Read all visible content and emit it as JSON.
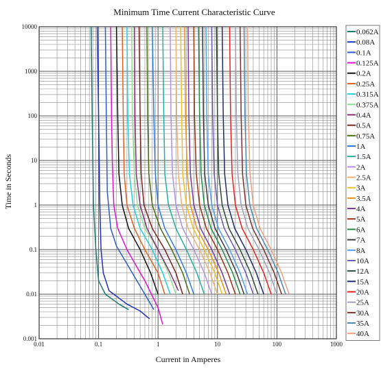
{
  "chart_data": {
    "type": "line",
    "title": "Minimum Time Current Characteristic Curve",
    "xlabel": "Current in Amperes",
    "ylabel": "Time in Seconds",
    "x_scale": "log",
    "y_scale": "log",
    "xlim": [
      0.01,
      1000
    ],
    "ylim": [
      0.001,
      10000
    ],
    "x_ticks": [
      "0.01",
      "0.1",
      "1",
      "10",
      "100",
      "1000"
    ],
    "y_ticks": [
      "0.001",
      "0.01",
      "0.1",
      "1",
      "10",
      "100",
      "1000",
      "10000"
    ],
    "grid": true,
    "legend_position": "right",
    "series": [
      {
        "name": "0.062A",
        "color": "#1a7a6e",
        "points": [
          [
            0.075,
            10000
          ],
          [
            0.078,
            100
          ],
          [
            0.082,
            1
          ],
          [
            0.09,
            0.1
          ],
          [
            0.1,
            0.02
          ],
          [
            0.13,
            0.01
          ],
          [
            0.22,
            0.006
          ],
          [
            0.32,
            0.0045
          ]
        ]
      },
      {
        "name": "0.08A",
        "color": "#1f2fbf",
        "points": [
          [
            0.095,
            10000
          ],
          [
            0.1,
            100
          ],
          [
            0.105,
            1
          ],
          [
            0.11,
            0.1
          ],
          [
            0.12,
            0.03
          ],
          [
            0.15,
            0.012
          ],
          [
            0.3,
            0.006
          ],
          [
            0.5,
            0.0042
          ],
          [
            0.72,
            0.0028
          ]
        ]
      },
      {
        "name": "0.1A",
        "color": "#2b5cc8",
        "points": [
          [
            0.13,
            10000
          ],
          [
            0.135,
            100
          ],
          [
            0.14,
            2
          ],
          [
            0.16,
            0.3
          ],
          [
            0.2,
            0.12
          ],
          [
            0.4,
            0.025
          ],
          [
            0.6,
            0.01
          ],
          [
            0.85,
            0.0045
          ]
        ]
      },
      {
        "name": "0.125A",
        "color": "#e010d0",
        "points": [
          [
            0.16,
            10000
          ],
          [
            0.165,
            100
          ],
          [
            0.17,
            10
          ],
          [
            0.18,
            1
          ],
          [
            0.21,
            0.3
          ],
          [
            0.3,
            0.1
          ],
          [
            0.6,
            0.02
          ],
          [
            1.0,
            0.005
          ],
          [
            1.2,
            0.0021
          ]
        ]
      },
      {
        "name": "0.2A",
        "color": "#111111",
        "points": [
          [
            0.2,
            10000
          ],
          [
            0.21,
            100
          ],
          [
            0.22,
            5
          ],
          [
            0.25,
            1
          ],
          [
            0.32,
            0.3
          ],
          [
            0.5,
            0.1
          ],
          [
            0.75,
            0.03
          ],
          [
            1.0,
            0.01
          ]
        ]
      },
      {
        "name": "0.25A",
        "color": "#e06020",
        "points": [
          [
            0.25,
            10000
          ],
          [
            0.26,
            100
          ],
          [
            0.27,
            5
          ],
          [
            0.3,
            1
          ],
          [
            0.4,
            0.3
          ],
          [
            0.6,
            0.1
          ],
          [
            1.0,
            0.03
          ],
          [
            1.3,
            0.01
          ]
        ]
      },
      {
        "name": "0.315A",
        "color": "#20d0d8",
        "points": [
          [
            0.3,
            10000
          ],
          [
            0.31,
            100
          ],
          [
            0.33,
            5
          ],
          [
            0.38,
            1
          ],
          [
            0.5,
            0.3
          ],
          [
            0.8,
            0.1
          ],
          [
            1.2,
            0.03
          ],
          [
            1.6,
            0.01
          ]
        ]
      },
      {
        "name": "0.375A",
        "color": "#90e090",
        "points": [
          [
            0.36,
            10000
          ],
          [
            0.37,
            100
          ],
          [
            0.4,
            5
          ],
          [
            0.45,
            1
          ],
          [
            0.6,
            0.3
          ],
          [
            1.0,
            0.1
          ],
          [
            1.5,
            0.03
          ],
          [
            2.0,
            0.01
          ]
        ]
      },
      {
        "name": "0.4A",
        "color": "#8a2a7a",
        "points": [
          [
            0.4,
            10000
          ],
          [
            0.41,
            100
          ],
          [
            0.43,
            5
          ],
          [
            0.5,
            1
          ],
          [
            0.65,
            0.3
          ],
          [
            1.0,
            0.1
          ],
          [
            1.6,
            0.03
          ],
          [
            2.2,
            0.012
          ]
        ]
      },
      {
        "name": "0.5A",
        "color": "#7a2020",
        "points": [
          [
            0.48,
            10000
          ],
          [
            0.5,
            100
          ],
          [
            0.52,
            5
          ],
          [
            0.58,
            1
          ],
          [
            0.8,
            0.3
          ],
          [
            1.3,
            0.1
          ],
          [
            2.0,
            0.03
          ],
          [
            2.6,
            0.01
          ]
        ]
      },
      {
        "name": "0.75A",
        "color": "#4a6a10",
        "points": [
          [
            0.65,
            10000
          ],
          [
            0.67,
            100
          ],
          [
            0.7,
            5
          ],
          [
            0.8,
            1
          ],
          [
            1.1,
            0.3
          ],
          [
            1.7,
            0.1
          ],
          [
            2.6,
            0.03
          ],
          [
            3.4,
            0.01
          ]
        ]
      },
      {
        "name": "1A",
        "color": "#2a7ae8",
        "points": [
          [
            0.8,
            10000
          ],
          [
            0.85,
            100
          ],
          [
            0.9,
            5
          ],
          [
            1.0,
            1
          ],
          [
            1.3,
            0.3
          ],
          [
            2.0,
            0.1
          ],
          [
            3.0,
            0.03
          ],
          [
            4.0,
            0.01
          ]
        ]
      },
      {
        "name": "1.5A",
        "color": "#20b0a0",
        "points": [
          [
            1.2,
            10000
          ],
          [
            1.25,
            100
          ],
          [
            1.3,
            5
          ],
          [
            1.5,
            1
          ],
          [
            2.0,
            0.3
          ],
          [
            3.0,
            0.1
          ],
          [
            4.5,
            0.03
          ],
          [
            6.0,
            0.01
          ]
        ]
      },
      {
        "name": "2A",
        "color": "#b090e8",
        "points": [
          [
            1.6,
            10000
          ],
          [
            1.65,
            100
          ],
          [
            1.75,
            5
          ],
          [
            2.0,
            1
          ],
          [
            2.6,
            0.3
          ],
          [
            4.0,
            0.1
          ],
          [
            6.0,
            0.03
          ],
          [
            8.0,
            0.01
          ]
        ]
      },
      {
        "name": "2.5A",
        "color": "#f0b070",
        "points": [
          [
            2.0,
            10000
          ],
          [
            2.05,
            100
          ],
          [
            2.2,
            5
          ],
          [
            2.5,
            1
          ],
          [
            3.2,
            0.3
          ],
          [
            5.0,
            0.1
          ],
          [
            7.5,
            0.03
          ],
          [
            10.0,
            0.01
          ]
        ]
      },
      {
        "name": "3A",
        "color": "#f0c020",
        "points": [
          [
            2.4,
            10000
          ],
          [
            2.5,
            100
          ],
          [
            2.6,
            5
          ],
          [
            3.0,
            1
          ],
          [
            3.9,
            0.3
          ],
          [
            6.0,
            0.1
          ],
          [
            9.0,
            0.03
          ],
          [
            12.0,
            0.01
          ]
        ]
      },
      {
        "name": "3.5A",
        "color": "#f09010",
        "points": [
          [
            2.8,
            10000
          ],
          [
            2.9,
            100
          ],
          [
            3.1,
            5
          ],
          [
            3.5,
            1
          ],
          [
            4.5,
            0.3
          ],
          [
            7.0,
            0.1
          ],
          [
            10.5,
            0.03
          ],
          [
            14.0,
            0.01
          ]
        ]
      },
      {
        "name": "4A",
        "color": "#7a3a9a",
        "points": [
          [
            3.2,
            10000
          ],
          [
            3.3,
            100
          ],
          [
            3.5,
            5
          ],
          [
            4.0,
            1
          ],
          [
            5.2,
            0.3
          ],
          [
            8.0,
            0.1
          ],
          [
            12.0,
            0.03
          ],
          [
            16.0,
            0.01
          ]
        ]
      },
      {
        "name": "5A",
        "color": "#9a3010",
        "points": [
          [
            4.0,
            10000
          ],
          [
            4.1,
            100
          ],
          [
            4.4,
            5
          ],
          [
            5.0,
            1
          ],
          [
            6.5,
            0.3
          ],
          [
            10.0,
            0.1
          ],
          [
            15.0,
            0.03
          ],
          [
            20.0,
            0.01
          ]
        ]
      },
      {
        "name": "6A",
        "color": "#208a40",
        "points": [
          [
            4.8,
            10000
          ],
          [
            5.0,
            100
          ],
          [
            5.3,
            5
          ],
          [
            6.0,
            1
          ],
          [
            7.8,
            0.3
          ],
          [
            12.0,
            0.1
          ],
          [
            18.0,
            0.03
          ],
          [
            24.0,
            0.01
          ]
        ]
      },
      {
        "name": "7A",
        "color": "#3a3a3a",
        "points": [
          [
            5.6,
            10000
          ],
          [
            5.8,
            100
          ],
          [
            6.1,
            5
          ],
          [
            7.0,
            1
          ],
          [
            9.1,
            0.3
          ],
          [
            14.0,
            0.1
          ],
          [
            21.0,
            0.03
          ],
          [
            28.0,
            0.01
          ]
        ]
      },
      {
        "name": "8A",
        "color": "#4aa0f0",
        "points": [
          [
            6.4,
            10000
          ],
          [
            6.6,
            100
          ],
          [
            7.0,
            5
          ],
          [
            8.0,
            1
          ],
          [
            10.4,
            0.3
          ],
          [
            16.0,
            0.1
          ],
          [
            24.0,
            0.03
          ],
          [
            32.0,
            0.01
          ]
        ]
      },
      {
        "name": "10A",
        "color": "#6a5ab0",
        "points": [
          [
            8.0,
            10000
          ],
          [
            8.3,
            100
          ],
          [
            8.8,
            5
          ],
          [
            10.0,
            1
          ],
          [
            13.0,
            0.3
          ],
          [
            20.0,
            0.1
          ],
          [
            30.0,
            0.03
          ],
          [
            40.0,
            0.01
          ]
        ]
      },
      {
        "name": "12A",
        "color": "#2a4a3a",
        "points": [
          [
            9.6,
            10000
          ],
          [
            10.0,
            100
          ],
          [
            10.5,
            5
          ],
          [
            12.0,
            1
          ],
          [
            15.6,
            0.3
          ],
          [
            24.0,
            0.1
          ],
          [
            36.0,
            0.03
          ],
          [
            48.0,
            0.01
          ]
        ]
      },
      {
        "name": "15A",
        "color": "#1a2a6a",
        "points": [
          [
            12.0,
            10000
          ],
          [
            12.5,
            100
          ],
          [
            13.2,
            5
          ],
          [
            15.0,
            1
          ],
          [
            19.5,
            0.3
          ],
          [
            30.0,
            0.1
          ],
          [
            45.0,
            0.03
          ],
          [
            60.0,
            0.01
          ]
        ]
      },
      {
        "name": "20A",
        "color": "#e82020",
        "points": [
          [
            16.0,
            10000
          ],
          [
            16.6,
            100
          ],
          [
            17.6,
            5
          ],
          [
            20.0,
            1
          ],
          [
            26.0,
            0.3
          ],
          [
            40.0,
            0.1
          ],
          [
            60.0,
            0.03
          ],
          [
            80.0,
            0.01
          ]
        ]
      },
      {
        "name": "25A",
        "color": "#a0a0b8",
        "points": [
          [
            20.0,
            10000
          ],
          [
            20.8,
            100
          ],
          [
            22.0,
            5
          ],
          [
            25.0,
            1
          ],
          [
            32.5,
            0.3
          ],
          [
            50.0,
            0.1
          ],
          [
            75.0,
            0.03
          ],
          [
            100.0,
            0.01
          ]
        ]
      },
      {
        "name": "30A",
        "color": "#7a3030",
        "points": [
          [
            24.0,
            10000
          ],
          [
            25.0,
            100
          ],
          [
            26.4,
            5
          ],
          [
            30.0,
            1
          ],
          [
            39.0,
            0.3
          ],
          [
            60.0,
            0.1
          ],
          [
            90.0,
            0.03
          ],
          [
            120.0,
            0.01
          ]
        ]
      },
      {
        "name": "35A",
        "color": "#4a8ab0",
        "points": [
          [
            28.0,
            10000
          ],
          [
            29.0,
            100
          ],
          [
            30.8,
            5
          ],
          [
            35.0,
            1
          ],
          [
            45.5,
            0.3
          ],
          [
            70.0,
            0.1
          ],
          [
            105.0,
            0.03
          ],
          [
            140.0,
            0.01
          ]
        ]
      },
      {
        "name": "40A",
        "color": "#f0a080",
        "points": [
          [
            32.0,
            10000
          ],
          [
            33.0,
            100
          ],
          [
            35.2,
            5
          ],
          [
            40.0,
            1
          ],
          [
            52.0,
            0.3
          ],
          [
            80.0,
            0.1
          ],
          [
            120.0,
            0.03
          ],
          [
            160.0,
            0.01
          ]
        ]
      }
    ]
  }
}
